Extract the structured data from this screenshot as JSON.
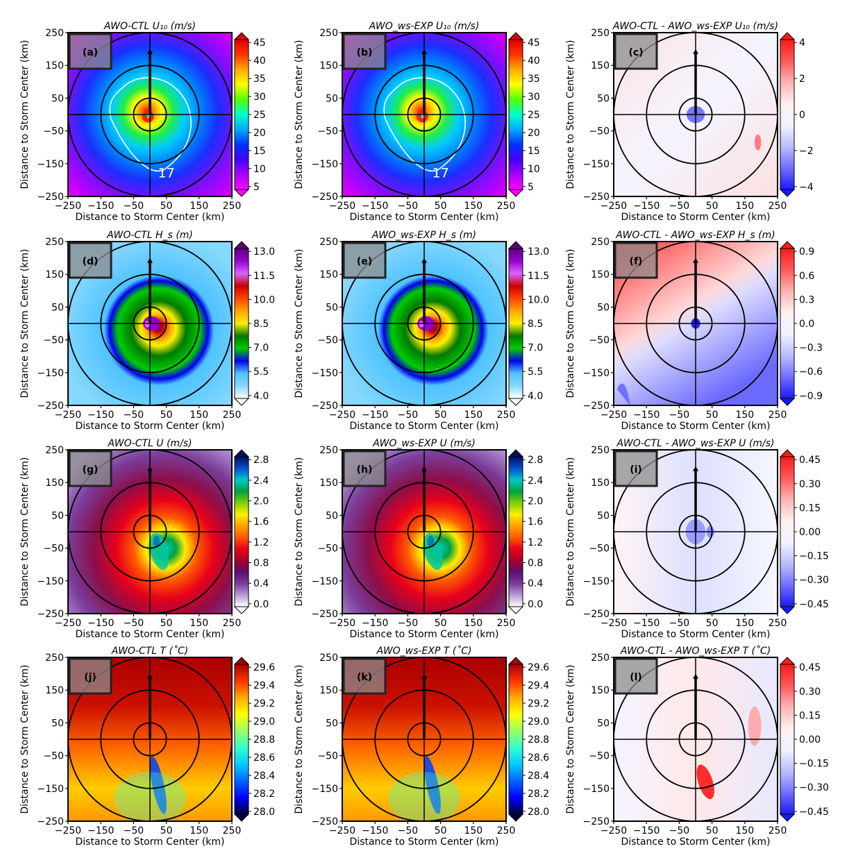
{
  "figure": {
    "axis_label_x": "Distance to Storm Center (km)",
    "axis_label_y": "Distance to Storm Center (km)",
    "ticks": [
      "−250",
      "−150",
      "−50",
      "50",
      "150",
      "250"
    ]
  },
  "colors": {
    "ring": "#000000",
    "annotation_box": "#8c8c8c",
    "contour": "#ffffff"
  },
  "chart_data": [
    {
      "panel": "(a)",
      "type": "heatmap",
      "title": "AWO-CTL U₁₀ (m/s)",
      "variable": "10-m wind speed",
      "units": "m/s",
      "x_range": [
        -250,
        250
      ],
      "y_range": [
        -250,
        250
      ],
      "colorbar": [
        5,
        10,
        15,
        20,
        25,
        30,
        35,
        40,
        45
      ],
      "colorbar_labels": [
        "5",
        "10",
        "15",
        "20",
        "25",
        "30",
        "35",
        "40",
        "45"
      ],
      "contour_label": "17",
      "colormap": "rainbow",
      "peak": 45,
      "rings_km": [
        25,
        75,
        125
      ],
      "track": "northward"
    },
    {
      "panel": "(b)",
      "type": "heatmap",
      "title": "AWO_ws-EXP U₁₀ (m/s)",
      "variable": "10-m wind speed",
      "units": "m/s",
      "x_range": [
        -250,
        250
      ],
      "y_range": [
        -250,
        250
      ],
      "colorbar": [
        5,
        10,
        15,
        20,
        25,
        30,
        35,
        40,
        45
      ],
      "colorbar_labels": [
        "5",
        "10",
        "15",
        "20",
        "25",
        "30",
        "35",
        "40",
        "45"
      ],
      "contour_label": "17",
      "colormap": "rainbow",
      "peak": 45,
      "rings_km": [
        25,
        75,
        125
      ],
      "track": "northward"
    },
    {
      "panel": "(c)",
      "type": "heatmap",
      "title": "AWO-CTL - AWO_ws-EXP U₁₀ (m/s)",
      "variable": "10-m wind speed difference",
      "units": "m/s",
      "x_range": [
        -250,
        250
      ],
      "y_range": [
        -250,
        250
      ],
      "colorbar": [
        -4,
        -2,
        0,
        2,
        4
      ],
      "colorbar_labels": [
        "−4",
        "−2",
        "0",
        "2",
        "4"
      ],
      "colormap": "bwr",
      "rings_km": [
        25,
        75,
        125
      ],
      "track": "northward"
    },
    {
      "panel": "(d)",
      "type": "heatmap",
      "title": "AWO-CTL H_s (m)",
      "variable": "significant wave height",
      "units": "m",
      "x_range": [
        -250,
        250
      ],
      "y_range": [
        -250,
        250
      ],
      "colorbar": [
        4.0,
        5.5,
        7.0,
        8.5,
        10.0,
        11.5,
        13.0
      ],
      "colorbar_labels": [
        "4.0",
        "5.5",
        "7.0",
        "8.5",
        "10.0",
        "11.5",
        "13.0"
      ],
      "colormap": "wave",
      "rings_km": [
        25,
        75,
        125
      ],
      "track": "northward"
    },
    {
      "panel": "(e)",
      "type": "heatmap",
      "title": "AWO_ws-EXP H_s (m)",
      "variable": "significant wave height",
      "units": "m",
      "x_range": [
        -250,
        250
      ],
      "y_range": [
        -250,
        250
      ],
      "colorbar": [
        4.0,
        5.5,
        7.0,
        8.5,
        10.0,
        11.5,
        13.0
      ],
      "colorbar_labels": [
        "4.0",
        "5.5",
        "7.0",
        "8.5",
        "10.0",
        "11.5",
        "13.0"
      ],
      "colormap": "wave",
      "rings_km": [
        25,
        75,
        125
      ],
      "track": "northward"
    },
    {
      "panel": "(f)",
      "type": "heatmap",
      "title": "AWO-CTL - AWO_ws-EXP H_s (m)",
      "variable": "significant wave height difference",
      "units": "m",
      "x_range": [
        -250,
        250
      ],
      "y_range": [
        -250,
        250
      ],
      "colorbar": [
        -0.9,
        -0.6,
        -0.3,
        0.0,
        0.3,
        0.6,
        0.9
      ],
      "colorbar_labels": [
        "−0.9",
        "−0.6",
        "−0.3",
        "0.0",
        "0.3",
        "0.6",
        "0.9"
      ],
      "colormap": "bwr",
      "rings_km": [
        25,
        75,
        125
      ],
      "track": "northward"
    },
    {
      "panel": "(g)",
      "type": "heatmap",
      "title": "AWO-CTL U (m/s)",
      "variable": "ocean current speed",
      "units": "m/s",
      "x_range": [
        -250,
        250
      ],
      "y_range": [
        -250,
        250
      ],
      "colorbar": [
        0.0,
        0.4,
        0.8,
        1.2,
        1.6,
        2.0,
        2.4,
        2.8
      ],
      "colorbar_labels": [
        "0.0",
        "0.4",
        "0.8",
        "1.2",
        "1.6",
        "2.0",
        "2.4",
        "2.8"
      ],
      "colormap": "current",
      "rings_km": [
        25,
        75,
        125
      ],
      "track": "northward"
    },
    {
      "panel": "(h)",
      "type": "heatmap",
      "title": "AWO_ws-EXP U (m/s)",
      "variable": "ocean current speed",
      "units": "m/s",
      "x_range": [
        -250,
        250
      ],
      "y_range": [
        -250,
        250
      ],
      "colorbar": [
        0.0,
        0.4,
        0.8,
        1.2,
        1.6,
        2.0,
        2.4,
        2.8
      ],
      "colorbar_labels": [
        "0.0",
        "0.4",
        "0.8",
        "1.2",
        "1.6",
        "2.0",
        "2.4",
        "2.8"
      ],
      "colormap": "current",
      "rings_km": [
        25,
        75,
        125
      ],
      "track": "northward"
    },
    {
      "panel": "(i)",
      "type": "heatmap",
      "title": "AWO-CTL - AWO_ws-EXP U (m/s)",
      "variable": "ocean current speed difference",
      "units": "m/s",
      "x_range": [
        -250,
        250
      ],
      "y_range": [
        -250,
        250
      ],
      "colorbar": [
        -0.45,
        -0.3,
        -0.15,
        0.0,
        0.15,
        0.3,
        0.45
      ],
      "colorbar_labels": [
        "−0.45",
        "−0.30",
        "−0.15",
        "0.00",
        "0.15",
        "0.30",
        "0.45"
      ],
      "colormap": "bwr",
      "rings_km": [
        25,
        75,
        125
      ],
      "track": "northward"
    },
    {
      "panel": "(j)",
      "type": "heatmap",
      "title": "AWO-CTL T (˚C)",
      "variable": "sea surface temperature",
      "units": "°C",
      "x_range": [
        -250,
        250
      ],
      "y_range": [
        -250,
        250
      ],
      "colorbar": [
        28.0,
        28.2,
        28.4,
        28.6,
        28.8,
        29.0,
        29.2,
        29.4,
        29.6
      ],
      "colorbar_labels": [
        "28.0",
        "28.2",
        "28.4",
        "28.6",
        "28.8",
        "29.0",
        "29.2",
        "29.4",
        "29.6"
      ],
      "colormap": "jet",
      "rings_km": [
        25,
        75,
        125
      ],
      "track": "northward"
    },
    {
      "panel": "(k)",
      "type": "heatmap",
      "title": "AWO_ws-EXP T (˚C)",
      "variable": "sea surface temperature",
      "units": "°C",
      "x_range": [
        -250,
        250
      ],
      "y_range": [
        -250,
        250
      ],
      "colorbar": [
        28.0,
        28.2,
        28.4,
        28.6,
        28.8,
        29.0,
        29.2,
        29.4,
        29.6
      ],
      "colorbar_labels": [
        "28.0",
        "28.2",
        "28.4",
        "28.6",
        "28.8",
        "29.0",
        "29.2",
        "29.4",
        "29.6"
      ],
      "colormap": "jet",
      "rings_km": [
        25,
        75,
        125
      ],
      "track": "northward"
    },
    {
      "panel": "(l)",
      "type": "heatmap",
      "title": "AWO-CTL - AWO_ws-EXP T (˚C)",
      "variable": "sea surface temperature difference",
      "units": "°C",
      "x_range": [
        -250,
        250
      ],
      "y_range": [
        -250,
        250
      ],
      "colorbar": [
        -0.45,
        -0.3,
        -0.15,
        0.0,
        0.15,
        0.3,
        0.45
      ],
      "colorbar_labels": [
        "−0.45",
        "−0.30",
        "−0.15",
        "0.00",
        "0.15",
        "0.30",
        "0.45"
      ],
      "colormap": "bwr",
      "rings_km": [
        25,
        75,
        125
      ],
      "track": "northward"
    }
  ]
}
